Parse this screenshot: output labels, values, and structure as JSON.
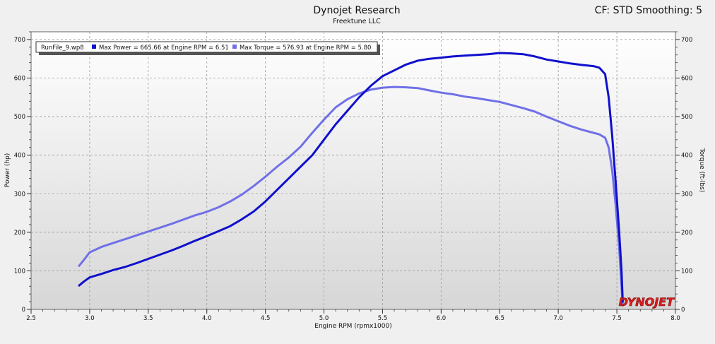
{
  "header": {
    "title": "Dynojet Research",
    "subtitle": "Freektune LLC",
    "cf_label": "CF: STD Smoothing: 5"
  },
  "logo": {
    "text": "DYNOJET",
    "color": "#d81e1e"
  },
  "chart_data": {
    "type": "line",
    "title": "Dynojet Research",
    "subtitle": "Freektune LLC",
    "xlabel": "Engine RPM (rpmx1000)",
    "ylabel_left": "Power (hp)",
    "ylabel_right": "Torque (ft-lbs)",
    "xlim": [
      2.5,
      8.0
    ],
    "ylim": [
      0,
      720
    ],
    "x_ticks": [
      "2.5",
      "3.0",
      "3.5",
      "4.0",
      "4.5",
      "5.0",
      "5.5",
      "6.0",
      "6.5",
      "7.0",
      "7.5",
      "8.0"
    ],
    "y_ticks": [
      "0",
      "100",
      "200",
      "300",
      "400",
      "500",
      "600",
      "700"
    ],
    "grid": true,
    "legend_placement": "top-left",
    "legend": {
      "file": "RunFile_9.wp8",
      "entries": [
        {
          "text": "Max Power = 665.66 at Engine RPM = 6.51",
          "color": "#1010cc"
        },
        {
          "text": "Max Torque = 576.93 at Engine RPM = 5.80",
          "color": "#7070e8"
        }
      ]
    },
    "series": [
      {
        "name": "Max Power",
        "axis": "left",
        "color": "#1010cc",
        "x": [
          2.91,
          2.95,
          3.0,
          3.1,
          3.2,
          3.3,
          3.4,
          3.5,
          3.6,
          3.7,
          3.8,
          3.9,
          4.0,
          4.1,
          4.2,
          4.3,
          4.4,
          4.5,
          4.6,
          4.7,
          4.8,
          4.9,
          5.0,
          5.1,
          5.2,
          5.3,
          5.4,
          5.5,
          5.6,
          5.7,
          5.8,
          5.9,
          6.0,
          6.1,
          6.2,
          6.3,
          6.4,
          6.5,
          6.6,
          6.7,
          6.8,
          6.9,
          7.0,
          7.1,
          7.2,
          7.3,
          7.35,
          7.4,
          7.43,
          7.46,
          7.49,
          7.52,
          7.54,
          7.55
        ],
        "values": [
          62,
          72,
          83,
          92,
          102,
          110,
          120,
          131,
          142,
          153,
          165,
          178,
          190,
          203,
          216,
          234,
          254,
          280,
          310,
          340,
          370,
          400,
          440,
          480,
          515,
          550,
          580,
          605,
          620,
          635,
          645,
          650,
          653,
          656,
          658,
          660,
          662,
          665,
          664,
          662,
          656,
          648,
          643,
          638,
          634,
          631,
          627,
          610,
          550,
          450,
          330,
          200,
          100,
          20
        ]
      },
      {
        "name": "Max Torque",
        "axis": "right",
        "color": "#7070e8",
        "x": [
          2.91,
          2.95,
          3.0,
          3.1,
          3.2,
          3.3,
          3.4,
          3.5,
          3.6,
          3.7,
          3.8,
          3.9,
          4.0,
          4.1,
          4.2,
          4.3,
          4.4,
          4.5,
          4.6,
          4.7,
          4.8,
          4.9,
          5.0,
          5.1,
          5.2,
          5.3,
          5.4,
          5.5,
          5.6,
          5.7,
          5.8,
          5.9,
          6.0,
          6.1,
          6.2,
          6.3,
          6.4,
          6.5,
          6.6,
          6.7,
          6.8,
          6.9,
          7.0,
          7.1,
          7.2,
          7.3,
          7.35,
          7.4,
          7.43,
          7.46,
          7.49,
          7.52,
          7.54,
          7.55
        ],
        "values": [
          113,
          128,
          148,
          162,
          172,
          182,
          192,
          202,
          212,
          222,
          233,
          244,
          253,
          265,
          280,
          298,
          320,
          344,
          370,
          394,
          422,
          458,
          492,
          524,
          545,
          560,
          570,
          575,
          577,
          576,
          574,
          568,
          562,
          558,
          552,
          548,
          543,
          538,
          530,
          522,
          513,
          500,
          488,
          476,
          466,
          458,
          454,
          445,
          420,
          360,
          270,
          160,
          60,
          10
        ]
      }
    ]
  }
}
